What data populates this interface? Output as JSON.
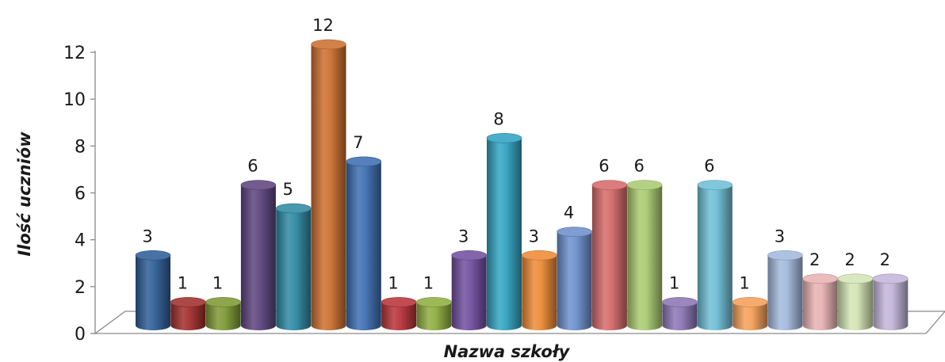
{
  "chart_data": {
    "type": "bar",
    "categories": [
      "",
      "",
      "",
      "",
      "",
      "",
      "",
      "",
      "",
      "",
      "",
      "",
      "",
      "",
      "",
      "",
      "",
      "",
      "",
      "",
      "",
      ""
    ],
    "values": [
      3,
      1,
      1,
      6,
      5,
      12,
      7,
      1,
      1,
      3,
      8,
      3,
      4,
      6,
      6,
      1,
      6,
      1,
      3,
      2,
      2,
      2
    ],
    "colors": [
      "#2F5F98",
      "#A12F2C",
      "#7E9A35",
      "#5E4580",
      "#2F8AA3",
      "#CC7030",
      "#3E6FB2",
      "#B8343A",
      "#8FAE40",
      "#7150A0",
      "#33A3C2",
      "#ED8A36",
      "#6D90CC",
      "#D66B6B",
      "#AACB72",
      "#8C77B5",
      "#6FBFD6",
      "#F5A05A",
      "#A4B9DD",
      "#E8B3B3",
      "#D4E5B5",
      "#C3B6DA"
    ],
    "xlabel": "Nazwa szkoły",
    "ylabel": "Ilość uczniów",
    "ylim": [
      0,
      12
    ],
    "yticks": [
      0,
      2,
      4,
      6,
      8,
      10,
      12
    ],
    "grid": false,
    "legend": "none",
    "style": "3d-cylinder"
  }
}
